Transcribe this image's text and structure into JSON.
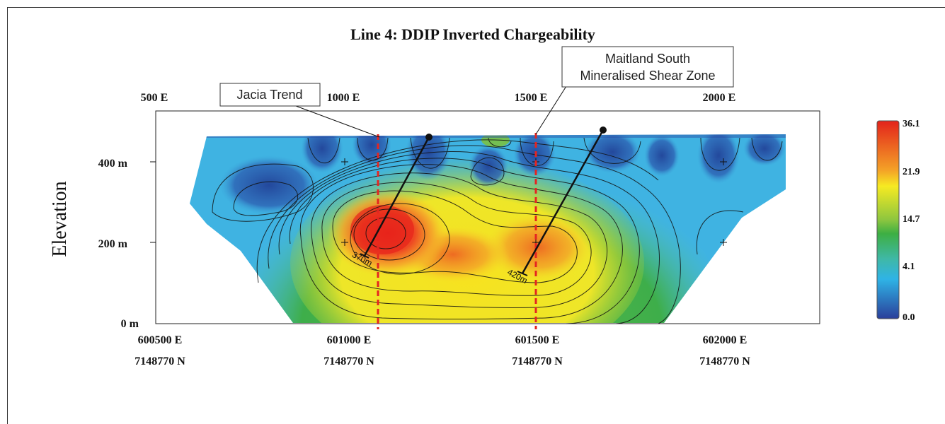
{
  "chart_data": {
    "type": "heatmap",
    "title": "Line 4: DDIP Inverted Chargeability",
    "ylabel": "Elevation",
    "x_top_ticks": [
      "500 E",
      "1000 E",
      "1500 E",
      "2000 E"
    ],
    "x_bottom_ticks": [
      {
        "e": "600500 E",
        "n": "7148770 N"
      },
      {
        "e": "601000 E",
        "n": "7148770 N"
      },
      {
        "e": "601500 E",
        "n": "7148770 N"
      },
      {
        "e": "602000 E",
        "n": "7148770 N"
      }
    ],
    "y_ticks": [
      "0 m",
      "200 m",
      "400 m"
    ],
    "xlim": [
      500,
      2000
    ],
    "ylim": [
      0,
      500
    ],
    "colorbar": {
      "labels": [
        "36.1",
        "21.9",
        "14.7",
        "4.1",
        "0.0"
      ],
      "colors": [
        "#e3231b",
        "#f6ea22",
        "#3daf43",
        "#2fb3e6",
        "#2a3f9a"
      ]
    },
    "annotations": [
      {
        "label": "Jacia Trend"
      },
      {
        "label": "Maitland South Mineralised Shear Zone",
        "lines": [
          "Maitland South",
          "Mineralised Shear Zone"
        ]
      }
    ],
    "drillholes": [
      {
        "label": "370m"
      },
      {
        "label": "420m"
      }
    ]
  }
}
